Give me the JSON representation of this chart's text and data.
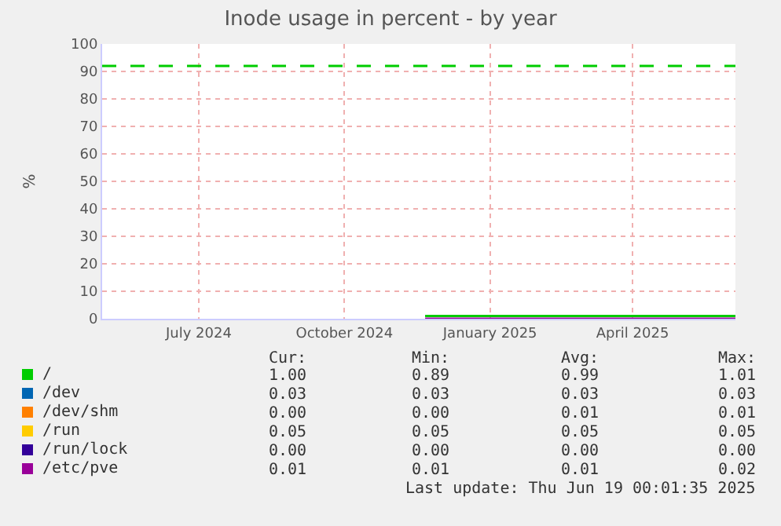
{
  "chart_data": {
    "type": "line",
    "title": "Inode usage in percent - by year",
    "ylabel": "%",
    "x": [
      "2024-12-05",
      "2025-06-19"
    ],
    "series": [
      {
        "name": "/",
        "color": "#00cc00",
        "values": [
          1.0,
          1.0
        ]
      },
      {
        "name": "/dev",
        "color": "#0066b3",
        "values": [
          null,
          null
        ]
      },
      {
        "name": "/dev/shm",
        "color": "#ff8000",
        "values": [
          null,
          null
        ]
      },
      {
        "name": "/run",
        "color": "#ffcc00",
        "values": [
          null,
          null
        ]
      },
      {
        "name": "/run/lock",
        "color": "#330099",
        "values": [
          null,
          null
        ]
      },
      {
        "name": "/etc/pve",
        "color": "#990099",
        "values": [
          0,
          0
        ]
      }
    ],
    "xlim": [
      "2024-05-15",
      "2025-06-19"
    ],
    "xticks": [
      {
        "value": "2024-07-15",
        "label": "July 2024"
      },
      {
        "value": "2024-10-15",
        "label": "October 2024"
      },
      {
        "value": "2025-01-15",
        "label": "January 2025"
      },
      {
        "value": "2025-04-15",
        "label": "April 2025"
      }
    ],
    "ylim": [
      0,
      100
    ],
    "yticks": [
      0,
      10,
      20,
      30,
      40,
      50,
      60,
      70,
      80,
      90,
      100
    ],
    "ref_lines": [
      {
        "axis": "y",
        "value": 92,
        "color": "#00cc00",
        "line_style": "dashed"
      }
    ],
    "grid": true,
    "legend": "bottom left",
    "marker": "none",
    "line_style": "solid",
    "annotations": [
      "Cur:",
      "Min:",
      "Avg:",
      "Max:",
      "1.00",
      "0.89",
      "0.99",
      "1.01",
      "0.03",
      "0.03",
      "0.03",
      "0.03",
      "0.00",
      "0.00",
      "0.01",
      "0.01",
      "0.05",
      "0.05",
      "0.05",
      "0.05",
      "0.00",
      "0.00",
      "0.00",
      "0.00",
      "0.01",
      "0.01",
      "0.01",
      "0.02",
      "Last update: Thu Jun 19 00:01:35 2025"
    ]
  }
}
